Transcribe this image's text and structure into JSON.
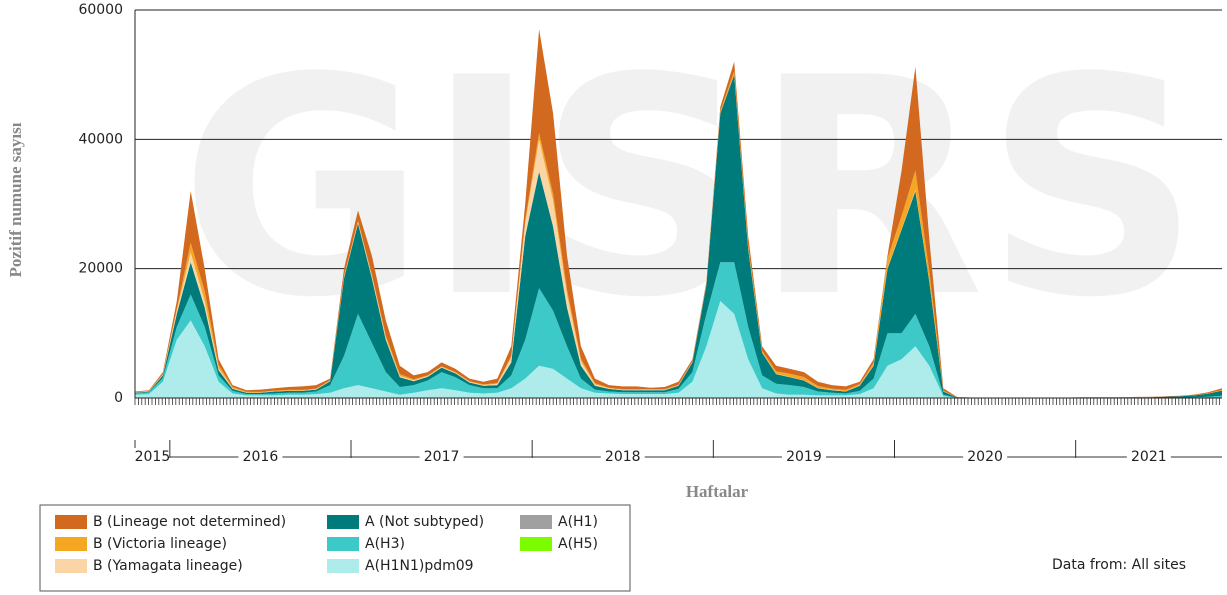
{
  "chart_data": {
    "type": "stacked-area",
    "watermark": "GISRS",
    "y_label": "Pozitif numune sayısı",
    "x_label": "Haftalar",
    "note": "Data from: All sites",
    "ylim": [
      0,
      60000
    ],
    "yticks": [
      0,
      20000,
      40000,
      60000
    ],
    "grid": true,
    "categories": [
      "2015",
      null,
      null,
      "2016",
      null,
      null,
      null,
      null,
      null,
      null,
      null,
      null,
      null,
      null,
      null,
      null,
      "2017",
      null,
      null,
      null,
      null,
      null,
      null,
      null,
      null,
      null,
      null,
      null,
      null,
      "2018",
      null,
      null,
      null,
      null,
      null,
      null,
      null,
      null,
      null,
      null,
      null,
      null,
      "2019",
      null,
      null,
      null,
      null,
      null,
      null,
      null,
      null,
      null,
      null,
      null,
      null,
      "2020",
      null,
      null,
      null,
      null,
      null,
      null,
      null,
      null,
      null,
      null,
      null,
      null,
      "2021",
      null,
      null,
      null,
      null,
      null,
      null,
      null,
      null,
      null,
      null
    ],
    "series": [
      {
        "name": "B (Lineage not determined)",
        "color": "#d2691e",
        "values": [
          100,
          100,
          300,
          1200,
          8000,
          3500,
          900,
          300,
          250,
          350,
          350,
          450,
          550,
          550,
          250,
          1100,
          1600,
          2900,
          2300,
          1300,
          600,
          500,
          600,
          500,
          400,
          400,
          700,
          1500,
          2500,
          16000,
          12500,
          5200,
          1900,
          700,
          400,
          450,
          450,
          250,
          350,
          450,
          300,
          250,
          650,
          1450,
          1450,
          650,
          850,
          750,
          750,
          650,
          550,
          550,
          350,
          550,
          400,
          7000,
          16000,
          5000,
          400,
          50,
          30,
          30,
          30,
          30,
          30,
          30,
          30,
          30,
          50,
          50,
          50,
          50,
          50,
          50,
          60,
          80,
          100,
          150,
          250
        ]
      },
      {
        "name": "B (Victoria lineage)",
        "color": "#f5a623",
        "values": [
          50,
          50,
          100,
          300,
          1500,
          1500,
          500,
          200,
          100,
          100,
          100,
          100,
          100,
          100,
          100,
          300,
          200,
          300,
          400,
          300,
          200,
          100,
          100,
          100,
          100,
          100,
          100,
          200,
          500,
          1000,
          1000,
          800,
          400,
          200,
          100,
          100,
          100,
          100,
          100,
          100,
          150,
          200,
          300,
          500,
          500,
          300,
          400,
          500,
          500,
          300,
          200,
          200,
          200,
          400,
          1500,
          2000,
          3000,
          1500,
          100,
          20,
          10,
          10,
          10,
          10,
          10,
          10,
          10,
          10,
          10,
          10,
          10,
          10,
          10,
          10,
          10,
          20,
          30,
          50,
          100
        ]
      },
      {
        "name": "B (Yamagata lineage)",
        "color": "#fbd5a5",
        "values": [
          50,
          50,
          100,
          500,
          1500,
          1000,
          300,
          100,
          50,
          50,
          50,
          50,
          50,
          50,
          50,
          100,
          200,
          300,
          300,
          200,
          100,
          100,
          100,
          100,
          100,
          100,
          200,
          800,
          2000,
          5000,
          4000,
          2000,
          700,
          200,
          100,
          50,
          50,
          50,
          50,
          50,
          50,
          50,
          50,
          50,
          50,
          50,
          50,
          50,
          50,
          50,
          50,
          50,
          50,
          50,
          100,
          100,
          200,
          100,
          20,
          0,
          0,
          0,
          0,
          0,
          0,
          0,
          0,
          0,
          0,
          0,
          0,
          0,
          0,
          0,
          0,
          0,
          0,
          0,
          0
        ]
      },
      {
        "name": "A (Not subtyped)",
        "color": "#007b7b",
        "values": [
          100,
          100,
          400,
          2000,
          5000,
          3000,
          800,
          300,
          200,
          200,
          300,
          300,
          300,
          300,
          600,
          12000,
          14000,
          10000,
          5000,
          1500,
          600,
          600,
          700,
          600,
          400,
          400,
          500,
          2000,
          16000,
          18000,
          13000,
          6000,
          2000,
          600,
          400,
          300,
          300,
          300,
          300,
          500,
          1500,
          4500,
          23000,
          29000,
          12000,
          3500,
          1500,
          1200,
          1000,
          500,
          400,
          300,
          800,
          2000,
          10000,
          16000,
          19000,
          10000,
          500,
          50,
          20,
          20,
          20,
          20,
          20,
          20,
          20,
          20,
          50,
          50,
          50,
          60,
          80,
          100,
          150,
          200,
          300,
          500,
          800
        ]
      },
      {
        "name": "A(H3)",
        "color": "#3ec9c9",
        "values": [
          200,
          300,
          600,
          2000,
          4000,
          3000,
          1000,
          400,
          200,
          200,
          300,
          300,
          300,
          400,
          1200,
          5000,
          11000,
          7000,
          3000,
          1200,
          1200,
          1500,
          2500,
          2000,
          1200,
          800,
          700,
          2000,
          6000,
          12000,
          9000,
          5000,
          1500,
          500,
          300,
          300,
          300,
          300,
          300,
          600,
          1500,
          5000,
          6000,
          8000,
          5000,
          2000,
          1500,
          1500,
          1200,
          600,
          400,
          300,
          500,
          1500,
          5000,
          4000,
          5000,
          3000,
          200,
          10,
          10,
          10,
          10,
          10,
          10,
          10,
          10,
          10,
          10,
          10,
          10,
          10,
          20,
          30,
          50,
          50,
          80,
          150,
          300
        ]
      },
      {
        "name": "A(H1N1)pdm09",
        "color": "#aeecec",
        "values": [
          500,
          600,
          2500,
          9000,
          12000,
          8000,
          2500,
          700,
          400,
          400,
          400,
          500,
          500,
          600,
          800,
          1500,
          2000,
          1500,
          1000,
          500,
          800,
          1200,
          1500,
          1200,
          800,
          700,
          800,
          1500,
          3000,
          5000,
          4500,
          3000,
          1500,
          800,
          700,
          600,
          600,
          600,
          600,
          800,
          2500,
          8000,
          15000,
          13000,
          6000,
          1500,
          700,
          500,
          500,
          400,
          400,
          400,
          600,
          1500,
          5000,
          6000,
          8000,
          5000,
          300,
          20,
          10,
          10,
          10,
          10,
          10,
          10,
          10,
          10,
          10,
          10,
          10,
          10,
          10,
          10,
          10,
          10,
          20,
          30,
          50
        ]
      },
      {
        "name": "A(H1)",
        "color": "#a0a0a0",
        "values": [
          0,
          0,
          0,
          0,
          0,
          0,
          0,
          0,
          0,
          0,
          0,
          0,
          0,
          0,
          0,
          0,
          0,
          0,
          0,
          0,
          0,
          0,
          0,
          0,
          0,
          0,
          0,
          0,
          0,
          0,
          0,
          0,
          0,
          0,
          0,
          0,
          0,
          0,
          0,
          0,
          0,
          0,
          0,
          0,
          0,
          0,
          0,
          0,
          0,
          0,
          0,
          0,
          0,
          0,
          0,
          0,
          0,
          0,
          0,
          0,
          0,
          0,
          0,
          0,
          0,
          0,
          0,
          0,
          0,
          0,
          0,
          0,
          0,
          0,
          0,
          0,
          0,
          0,
          0
        ]
      },
      {
        "name": "A(H5)",
        "color": "#7cfc00",
        "values": [
          0,
          0,
          0,
          0,
          0,
          0,
          0,
          0,
          0,
          0,
          0,
          0,
          0,
          0,
          0,
          0,
          0,
          0,
          0,
          0,
          0,
          0,
          0,
          0,
          0,
          0,
          0,
          0,
          0,
          0,
          0,
          0,
          0,
          0,
          0,
          0,
          0,
          0,
          0,
          0,
          0,
          0,
          0,
          0,
          0,
          0,
          0,
          0,
          0,
          0,
          0,
          0,
          0,
          0,
          0,
          0,
          0,
          0,
          0,
          0,
          0,
          0,
          0,
          0,
          0,
          0,
          0,
          0,
          0,
          0,
          0,
          0,
          0,
          0,
          0,
          0,
          0,
          0,
          0
        ]
      }
    ]
  }
}
